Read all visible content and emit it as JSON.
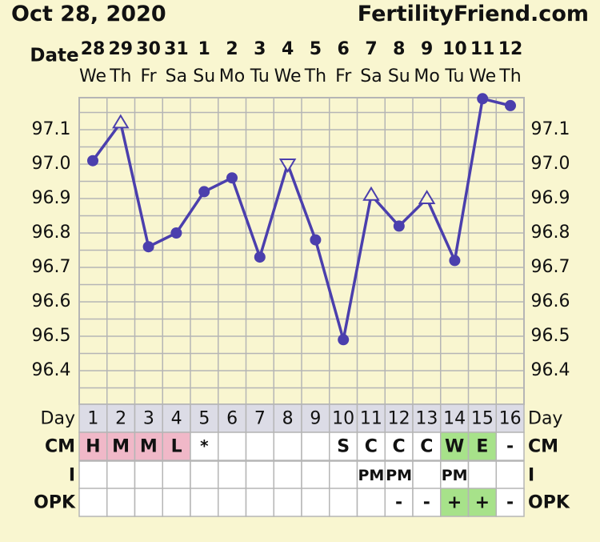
{
  "header": {
    "date": "Oct 28, 2020",
    "site": "FertilityFriend.com"
  },
  "labels": {
    "date": "Date",
    "day": "Day",
    "cm": "CM",
    "i": "I",
    "opk": "OPK"
  },
  "colors": {
    "line": "#4b3fad",
    "grid": "#b5b5b5",
    "background": "#f9f6d0",
    "menstrual": "#f0b8c8",
    "fertile": "#a7e28a",
    "day_row": "#dcdce6"
  },
  "chart_data": {
    "type": "line",
    "title": "",
    "xlabel": "Date",
    "ylabel": "",
    "x": [
      "28",
      "29",
      "30",
      "31",
      "1",
      "2",
      "3",
      "4",
      "5",
      "6",
      "7",
      "8",
      "9",
      "10",
      "11",
      "12"
    ],
    "weekdays": [
      "We",
      "Th",
      "Fr",
      "Sa",
      "Su",
      "Mo",
      "Tu",
      "We",
      "Th",
      "Fr",
      "Sa",
      "Su",
      "Mo",
      "Tu",
      "We",
      "Th"
    ],
    "series": [
      {
        "values": [
          97.01,
          97.12,
          96.76,
          96.8,
          96.92,
          96.96,
          96.73,
          97.0,
          96.78,
          96.49,
          96.91,
          96.82,
          96.9,
          96.72,
          97.19,
          97.17
        ],
        "markers": [
          "dot",
          "tri-up",
          "dot",
          "dot",
          "dot",
          "dot",
          "dot",
          "tri-down",
          "dot",
          "dot",
          "tri-up",
          "dot",
          "tri-up",
          "dot",
          "dot",
          "dot"
        ]
      }
    ],
    "y_ticks": [
      "97.1",
      "97.0",
      "96.9",
      "96.8",
      "96.7",
      "96.6",
      "96.5",
      "96.4"
    ],
    "ylim": [
      96.3,
      97.2
    ],
    "grid": true
  },
  "rows": {
    "day": [
      "1",
      "2",
      "3",
      "4",
      "5",
      "6",
      "7",
      "8",
      "9",
      "10",
      "11",
      "12",
      "13",
      "14",
      "15",
      "16"
    ],
    "cm": [
      "H",
      "M",
      "M",
      "L",
      "*",
      "",
      "",
      "",
      "",
      "S",
      "C",
      "C",
      "C",
      "W",
      "E",
      "-"
    ],
    "cm_color": [
      "menstrual",
      "menstrual",
      "menstrual",
      "menstrual",
      "",
      "",
      "",
      "",
      "",
      "",
      "",
      "",
      "",
      "fertile",
      "fertile",
      ""
    ],
    "i": [
      "",
      "",
      "",
      "",
      "",
      "",
      "",
      "",
      "",
      "",
      "PM",
      "PM",
      "",
      "PM",
      "",
      ""
    ],
    "opk": [
      "",
      "",
      "",
      "",
      "",
      "",
      "",
      "",
      "",
      "",
      "",
      "-",
      "-",
      "+",
      "+",
      "-"
    ],
    "opk_color": [
      "",
      "",
      "",
      "",
      "",
      "",
      "",
      "",
      "",
      "",
      "",
      "",
      "",
      "fertile",
      "fertile",
      ""
    ]
  }
}
